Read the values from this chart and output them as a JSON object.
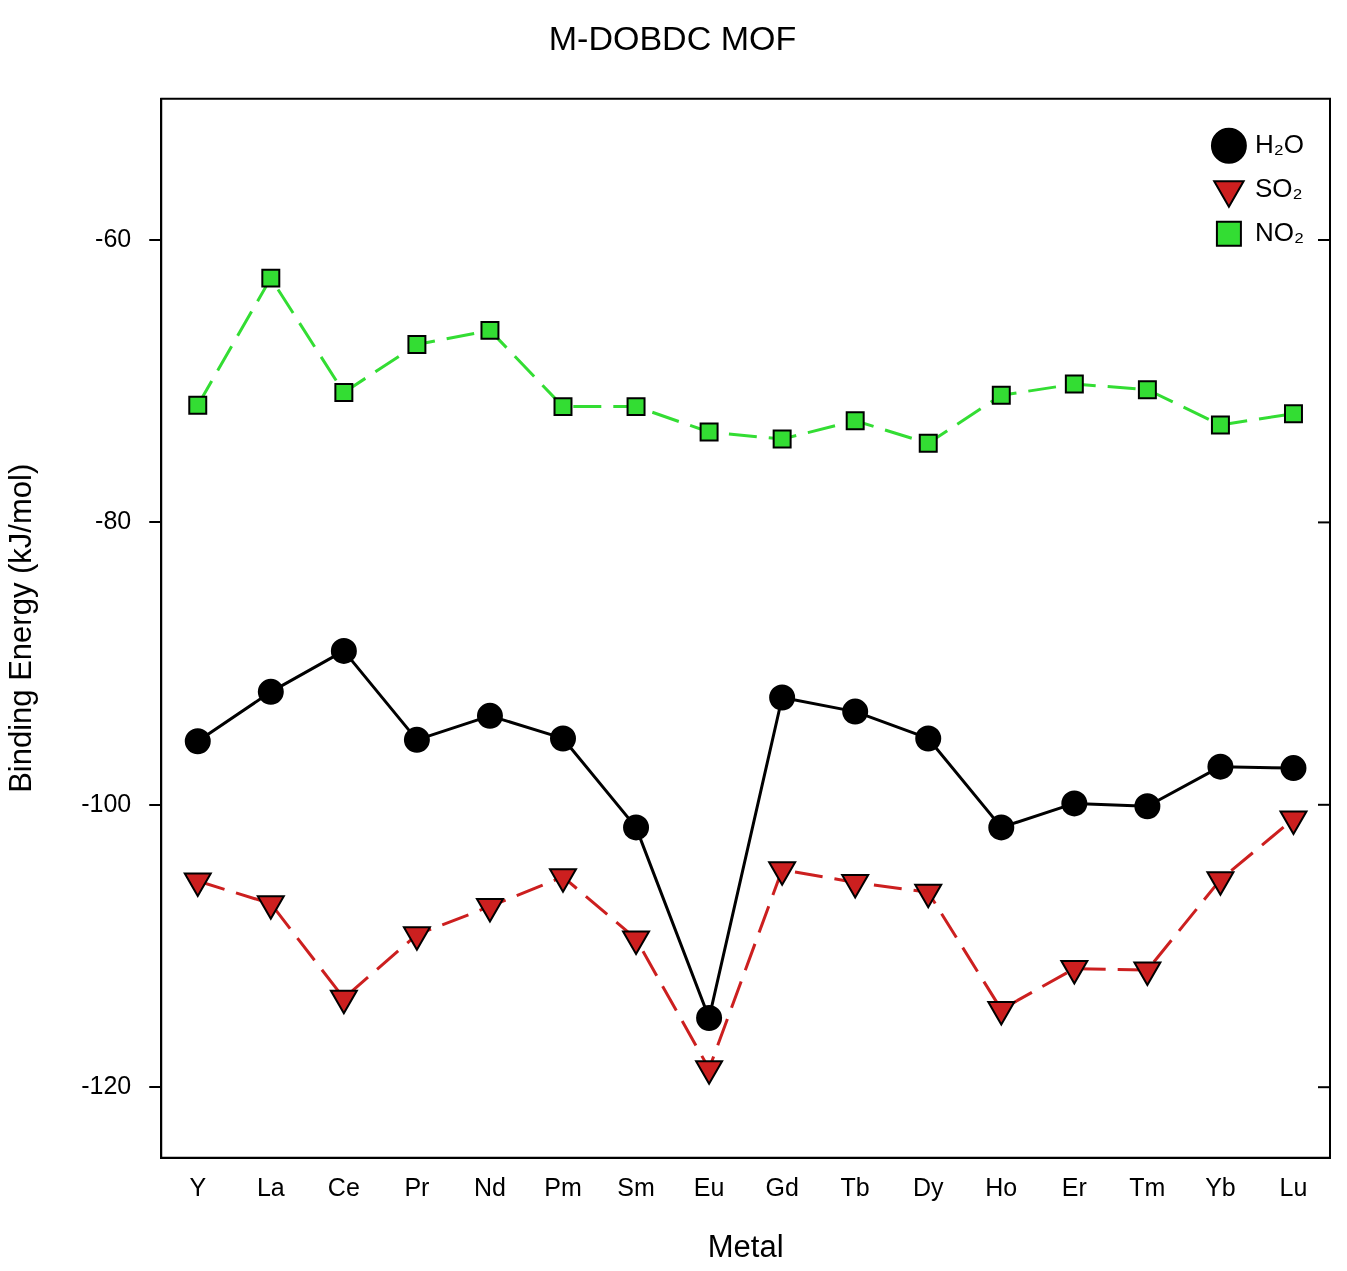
{
  "chart_data": {
    "type": "line",
    "title": "M-DOBDC MOF",
    "xlabel": "Metal",
    "ylabel": "Binding Energy (kJ/mol)",
    "categories": [
      "Y",
      "La",
      "Ce",
      "Pr",
      "Nd",
      "Pm",
      "Sm",
      "Eu",
      "Gd",
      "Tb",
      "Dy",
      "Ho",
      "Er",
      "Tm",
      "Yb",
      "Lu"
    ],
    "series": [
      {
        "name": "H₂O",
        "color": "#000000",
        "marker": "circle",
        "line_style": "solid",
        "values": [
          -95.5,
          -92.0,
          -89.1,
          -95.4,
          -93.7,
          -95.3,
          -101.6,
          -115.1,
          -92.4,
          -93.4,
          -95.3,
          -101.6,
          -99.9,
          -100.1,
          -97.3,
          -97.4
        ]
      },
      {
        "name": "SO₂",
        "color": "#cc1f1f",
        "marker": "triangle",
        "line_style": "dashed",
        "values": [
          -105.4,
          -107.0,
          -113.7,
          -109.2,
          -107.2,
          -105.1,
          -109.5,
          -118.7,
          -104.6,
          -105.5,
          -106.2,
          -114.5,
          -111.6,
          -111.7,
          -105.3,
          -101.0
        ]
      },
      {
        "name": "NO₂",
        "color": "#33dd33",
        "marker": "square",
        "line_style": "dashed",
        "values": [
          -71.7,
          -62.7,
          -70.8,
          -67.4,
          -66.4,
          -71.8,
          -71.8,
          -73.6,
          -74.1,
          -72.8,
          -74.4,
          -71.0,
          -70.2,
          -70.6,
          -73.1,
          -72.3
        ]
      }
    ],
    "ylim": [
      -125,
      -50
    ],
    "yticks": [
      -60,
      -80,
      -100,
      -120
    ],
    "grid": false,
    "legend": "top right"
  }
}
